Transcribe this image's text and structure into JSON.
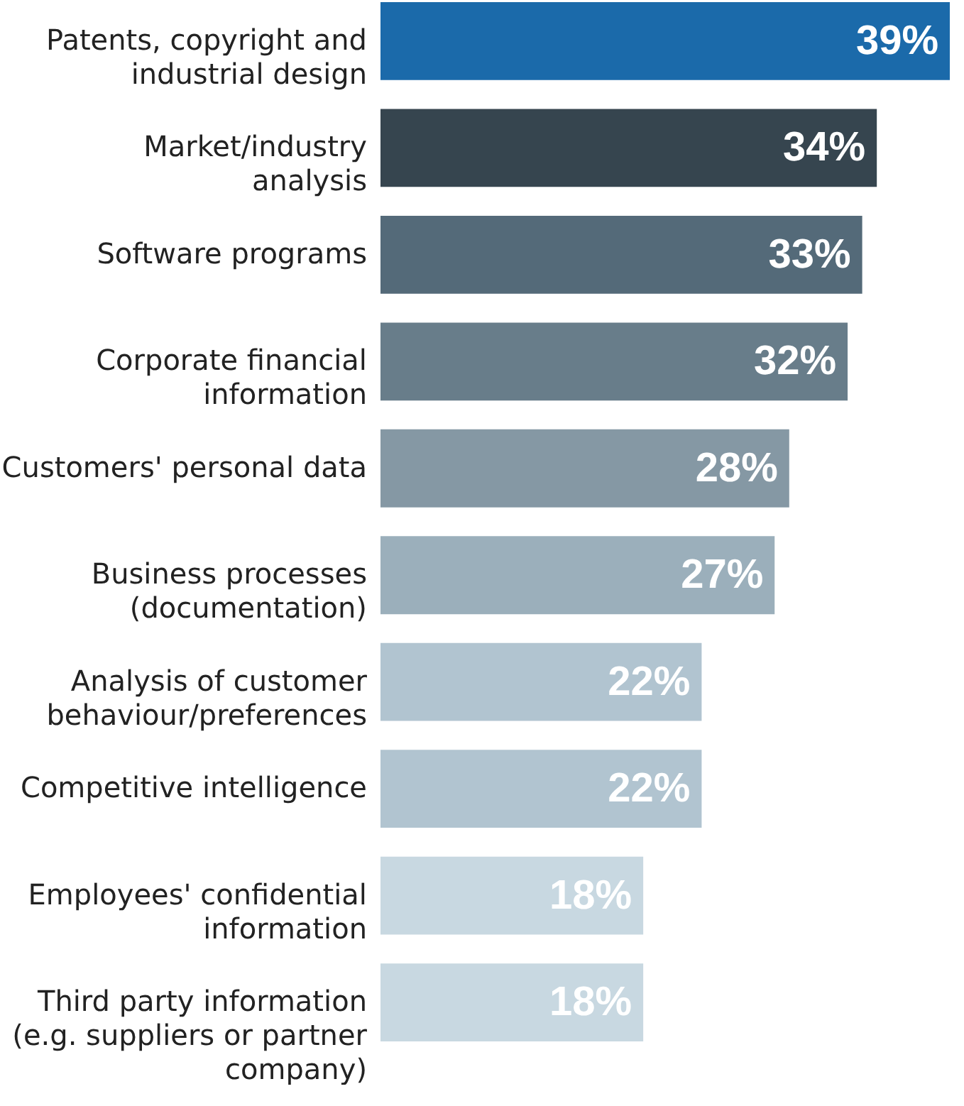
{
  "chart_data": {
    "type": "bar",
    "orientation": "horizontal",
    "data_labels": true,
    "value_labels": [
      "39%",
      "34%",
      "33%",
      "32%",
      "28%",
      "27%",
      "22%",
      "22%",
      "18%",
      "18%"
    ],
    "categories": [
      "Patents, copyright and\nindustrial design",
      "Market/industry\nanalysis",
      "Software programs",
      "Corporate financial\ninformation",
      "Customers' personal data",
      "Business processes\n(documentation)",
      "Analysis of customer\nbehaviour/preferences",
      "Competitive intelligence",
      "Employees' confidential\ninformation",
      "Third party information\n(e.g. suppliers or partner\ncompany)"
    ],
    "values": [
      39,
      34,
      33,
      32,
      28,
      27,
      22,
      22,
      18,
      18
    ],
    "colors": [
      "#1b6aaa",
      "#36454f",
      "#546a79",
      "#687d8a",
      "#8598a4",
      "#9bafbb",
      "#b1c4d0",
      "#b1c4d0",
      "#c8d8e1",
      "#c8d8e1"
    ],
    "grid": false
  }
}
